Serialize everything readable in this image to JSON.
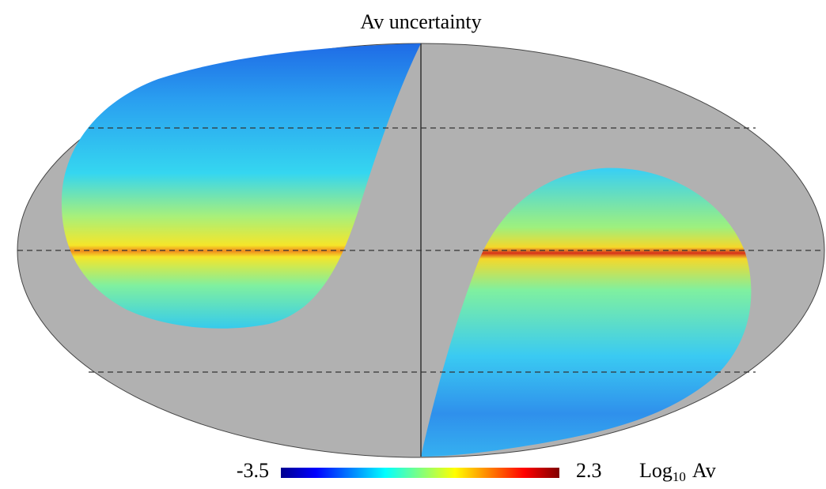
{
  "title": "Av uncertainty",
  "colorbar": {
    "min": -3.5,
    "max": 2.3,
    "label": {
      "base": "Log",
      "sub": "10",
      "unit": "Av"
    }
  }
}
